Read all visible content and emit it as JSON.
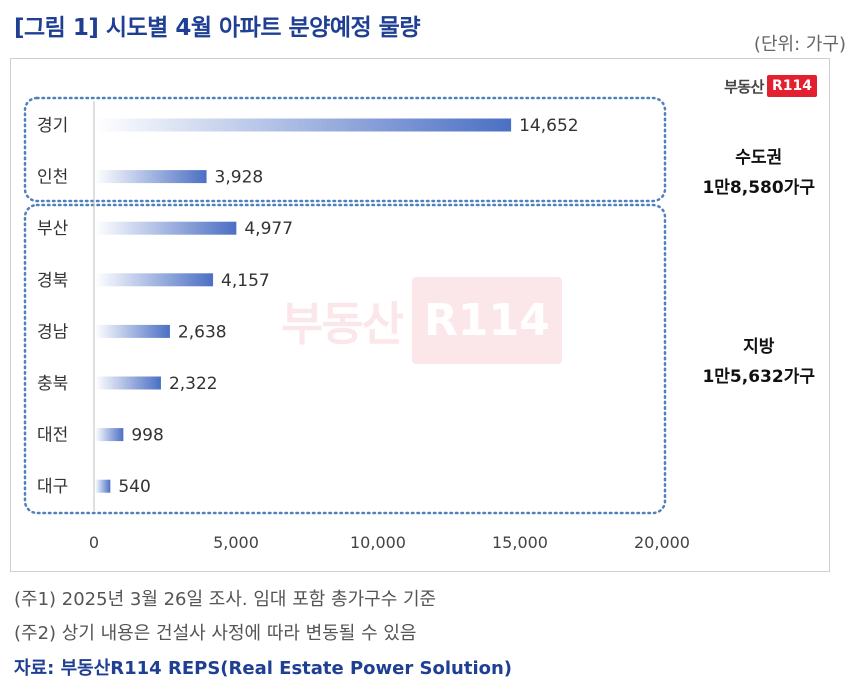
{
  "title": "[그림 1] 시도별 4월 아파트 분양예정 물량",
  "unit": "(단위: 가구)",
  "logo": {
    "text": "부동산",
    "box": "R114"
  },
  "groups": [
    {
      "name": "수도권",
      "total": "1만8,580가구"
    },
    {
      "name": "지방",
      "total": "1만5,632가구"
    }
  ],
  "notes": [
    "(주1) 2025년 3월 26일 조사. 임대 포함 총가구수 기준",
    "(주2) 상기 내용은 건설사 사정에 따라 변동될 수 있음"
  ],
  "source": "자료: 부동산R114 REPS(Real Estate Power Solution)",
  "colors": {
    "title": "#1f3f93",
    "bar": "#4b6fc4",
    "group_border": "#4f81bd",
    "brand_red": "#e2202f"
  },
  "chart_data": {
    "type": "bar",
    "orientation": "horizontal",
    "categories": [
      "경기",
      "인천",
      "부산",
      "경북",
      "경남",
      "충북",
      "대전",
      "대구"
    ],
    "values": [
      14652,
      3928,
      4977,
      4157,
      2638,
      2322,
      998,
      540
    ],
    "value_labels": [
      "14,652",
      "3,928",
      "4,977",
      "4,157",
      "2,638",
      "2,322",
      "998",
      "540"
    ],
    "xlim": [
      0,
      20000
    ],
    "xticks": [
      0,
      5000,
      10000,
      15000,
      20000
    ],
    "xtick_labels": [
      "0",
      "5,000",
      "10,000",
      "15,000",
      "20,000"
    ],
    "grid": false,
    "legend": "none"
  }
}
